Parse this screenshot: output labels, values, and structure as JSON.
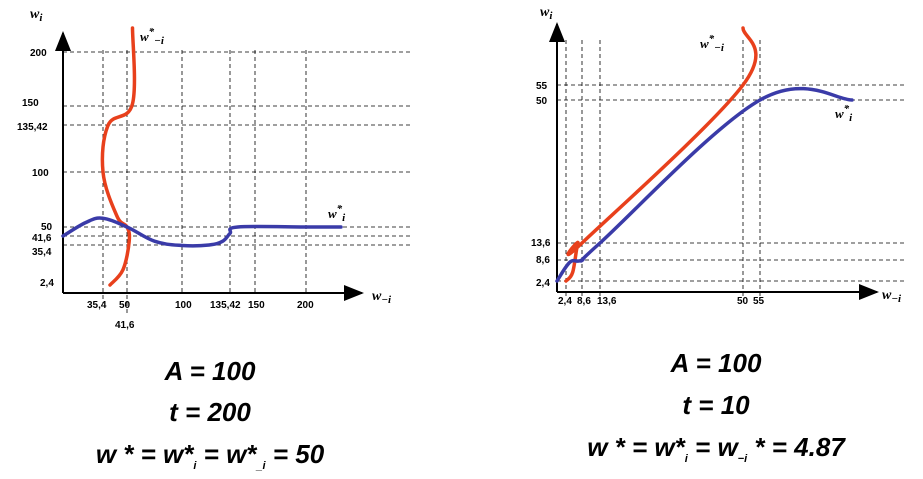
{
  "chart_data": [
    {
      "type": "line",
      "title": "",
      "xlabel": "w",
      "xlabel_sub": "−i",
      "ylabel": "w",
      "ylabel_sub": "i",
      "x_ticks": [
        "35,4",
        "50",
        "41,6",
        "100",
        "135,42",
        "150",
        "200"
      ],
      "y_ticks": [
        "200",
        "150",
        "135,42",
        "100",
        "50",
        "41,6",
        "35,4",
        "2,4"
      ],
      "grid": "dashed",
      "series": [
        {
          "name": "w*−i",
          "label_main": "w",
          "label_sup": "*",
          "label_sub": "−i",
          "color": "#e8401c",
          "points": [
            [
              55,
              235
            ],
            [
              55,
              152
            ],
            [
              40,
              135.42
            ],
            [
              35.4,
              100
            ],
            [
              45,
              60
            ],
            [
              50,
              50
            ],
            [
              52,
              38
            ],
            [
              48,
              15
            ],
            [
              41.6,
              2.4
            ]
          ]
        },
        {
          "name": "w*i",
          "label_main": "w",
          "label_sup": "*",
          "label_sub": "i",
          "color": "#3a3ba8",
          "points": [
            [
              0,
              41.6
            ],
            [
              20,
              54
            ],
            [
              35,
              58
            ],
            [
              50,
              50
            ],
            [
              75,
              38
            ],
            [
              100,
              35
            ],
            [
              120,
              35.4
            ],
            [
              130,
              38
            ],
            [
              135.42,
              44
            ],
            [
              140,
              50
            ],
            [
              200,
              50
            ],
            [
              240,
              50
            ]
          ]
        }
      ]
    },
    {
      "type": "line",
      "title": "",
      "xlabel": "w",
      "xlabel_sub": "−i",
      "ylabel": "w",
      "ylabel_sub": "i",
      "x_ticks": [
        "2,4",
        "8,6",
        "13,6",
        "50",
        "55"
      ],
      "y_ticks": [
        "55",
        "50",
        "13,6",
        "8,6",
        "2,4"
      ],
      "grid": "dashed",
      "series": [
        {
          "name": "w*−i",
          "label_main": "w",
          "label_sup": "*",
          "label_sub": "−i",
          "color": "#e8401c",
          "points": [
            [
              2.4,
              2.4
            ],
            [
              5,
              5
            ],
            [
              7,
              13.6
            ],
            [
              8.6,
              13.6
            ],
            [
              50,
              55
            ],
            [
              50,
              75
            ]
          ]
        },
        {
          "name": "w*i",
          "label_main": "w",
          "label_sup": "*",
          "label_sub": "i",
          "color": "#3a3ba8",
          "points": [
            [
              0,
              2.4
            ],
            [
              4,
              8
            ],
            [
              8.6,
              8.6
            ],
            [
              13.6,
              13.6
            ],
            [
              55,
              50
            ],
            [
              70,
              50
            ]
          ]
        }
      ]
    }
  ],
  "equations": {
    "left": {
      "line1": {
        "lhs": "A",
        "op": " = ",
        "rhs": "100"
      },
      "line2": {
        "lhs": "t",
        "op": " = ",
        "rhs": "200"
      },
      "line3": {
        "w1": "w",
        "star1": " *",
        "eq1": " = ",
        "w2": "w*",
        "sub2": "i",
        "eq2": " = ",
        "w3": "w*",
        "sub3": "_i",
        "eq3": " = ",
        "val": "50"
      }
    },
    "right": {
      "line1": {
        "lhs": "A",
        "op": " = ",
        "rhs": "100"
      },
      "line2": {
        "lhs": "t",
        "op": " = ",
        "rhs": "10"
      },
      "line3": {
        "w1": "w",
        "star1": " *",
        "eq1": " = ",
        "w2": "w*",
        "sub2": "i",
        "eq2": " = ",
        "w3": "w",
        "sub3": "−i",
        "star3": " *",
        "eq3": " = ",
        "val": "4.87"
      }
    }
  }
}
